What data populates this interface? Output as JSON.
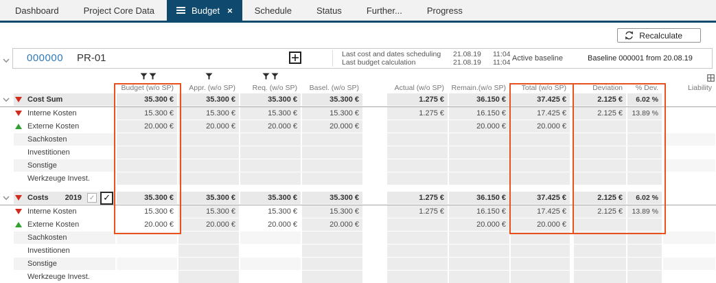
{
  "tabs": [
    {
      "label": "Dashboard",
      "active": false
    },
    {
      "label": "Project Core Data",
      "active": false
    },
    {
      "label": "Budget",
      "active": true
    },
    {
      "label": "Schedule",
      "active": false
    },
    {
      "label": "Status",
      "active": false
    },
    {
      "label": "Further...",
      "active": false
    },
    {
      "label": "Progress",
      "active": false
    }
  ],
  "toolbar": {
    "recalculate": "Recalculate"
  },
  "project": {
    "number": "000000",
    "code": "PR-01",
    "info": [
      {
        "label": "Last cost and dates scheduling",
        "date": "21.08.19",
        "time": "11:04"
      },
      {
        "label": "Last budget calculation",
        "date": "21.08.19",
        "time": "11:04"
      }
    ],
    "active_baseline_label": "Active baseline",
    "baseline": "Baseline 000001 from 20.08.19"
  },
  "table": {
    "columns": [
      "Budget (w/o SP)",
      "Appr. (w/o SP)",
      "Req. (w/o SP)",
      "Basel. (w/o SP)",
      "Actual (w/o SP)",
      "Remain.(w/o SP)",
      "Total (w/o SP)",
      "Deviation",
      "% Dev.",
      "Liability"
    ],
    "filter_icons": {
      "budget": 2,
      "appr": 1,
      "req": 2
    },
    "groups": [
      {
        "header": {
          "label": "Cost Sum",
          "trend": "down",
          "cells": [
            "35.300 €",
            "35.300 €",
            "35.300 €",
            "35.300 €",
            "1.275 €",
            "36.150 €",
            "37.425 €",
            "2.125 €",
            "6.02 %",
            ""
          ]
        },
        "editable_cols": [],
        "rows": [
          {
            "label": "Interne Kosten",
            "trend": "down",
            "cells": [
              "15.300 €",
              "15.300 €",
              "15.300 €",
              "15.300 €",
              "1.275 €",
              "16.150 €",
              "17.425 €",
              "2.125 €",
              "13.89 %",
              ""
            ]
          },
          {
            "label": "Externe Kosten",
            "trend": "up",
            "cells": [
              "20.000 €",
              "20.000 €",
              "20.000 €",
              "20.000 €",
              "",
              "20.000 €",
              "20.000 €",
              "",
              "",
              ""
            ]
          },
          {
            "label": "Sachkosten",
            "trend": "",
            "cells": [
              "",
              "",
              "",
              "",
              "",
              "",
              "",
              "",
              "",
              ""
            ]
          },
          {
            "label": "Investitionen",
            "trend": "",
            "cells": [
              "",
              "",
              "",
              "",
              "",
              "",
              "",
              "",
              "",
              ""
            ]
          },
          {
            "label": "Sonstige",
            "trend": "",
            "cells": [
              "",
              "",
              "",
              "",
              "",
              "",
              "",
              "",
              "",
              ""
            ]
          },
          {
            "label": "Werkzeuge Invest.",
            "trend": "",
            "cells": [
              "",
              "",
              "",
              "",
              "",
              "",
              "",
              "",
              "",
              ""
            ]
          }
        ]
      },
      {
        "header": {
          "label": "Costs",
          "year": "2019",
          "trend": "down",
          "baseline_checkbox": true,
          "active_checkbox": true,
          "cells": [
            "35.300 €",
            "35.300 €",
            "35.300 €",
            "35.300 €",
            "1.275 €",
            "36.150 €",
            "37.425 €",
            "2.125 €",
            "6.02 %",
            ""
          ]
        },
        "editable_cols": [
          0,
          2
        ],
        "rows": [
          {
            "label": "Interne Kosten",
            "trend": "down",
            "cells": [
              "15.300 €",
              "15.300 €",
              "15.300 €",
              "15.300 €",
              "1.275 €",
              "16.150 €",
              "17.425 €",
              "2.125 €",
              "13.89 %",
              ""
            ]
          },
          {
            "label": "Externe Kosten",
            "trend": "up",
            "cells": [
              "20.000 €",
              "20.000 €",
              "20.000 €",
              "20.000 €",
              "",
              "20.000 €",
              "20.000 €",
              "",
              "",
              ""
            ]
          },
          {
            "label": "Sachkosten",
            "trend": "",
            "cells": [
              "",
              "",
              "",
              "",
              "",
              "",
              "",
              "",
              "",
              ""
            ]
          },
          {
            "label": "Investitionen",
            "trend": "",
            "cells": [
              "",
              "",
              "",
              "",
              "",
              "",
              "",
              "",
              "",
              ""
            ]
          },
          {
            "label": "Sonstige",
            "trend": "",
            "cells": [
              "",
              "",
              "",
              "",
              "",
              "",
              "",
              "",
              "",
              ""
            ]
          },
          {
            "label": "Werkzeuge Invest.",
            "trend": "",
            "cells": [
              "",
              "",
              "",
              "",
              "",
              "",
              "",
              "",
              "",
              ""
            ]
          }
        ]
      }
    ]
  },
  "colors": {
    "active_tab": "#0f4a6e",
    "highlight": "#e8511c",
    "negative": "#d12b1e",
    "positive": "#2fa12e",
    "project_number": "#2a79bd"
  }
}
